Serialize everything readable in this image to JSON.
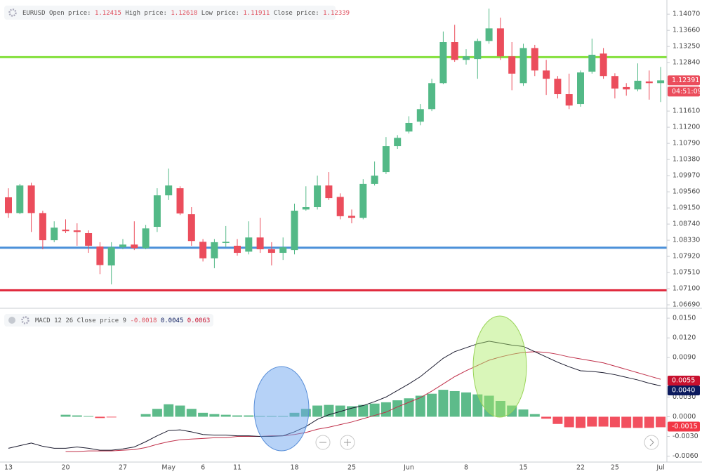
{
  "chart_data": [
    {
      "type": "candlestick",
      "symbol": "EURUSD",
      "legend": [
        {
          "label": "Open price:",
          "value": 1.12415
        },
        {
          "label": "High price:",
          "value": 1.12618
        },
        {
          "label": "Low price:",
          "value": 1.11911
        },
        {
          "label": "Close price:",
          "value": 1.12339
        }
      ],
      "categories": [
        "13",
        null,
        null,
        null,
        null,
        "20",
        null,
        null,
        null,
        null,
        "27",
        null,
        null,
        null,
        "May",
        null,
        null,
        "6",
        null,
        null,
        "11",
        null,
        null,
        null,
        null,
        "18",
        null,
        null,
        null,
        null,
        "25",
        null,
        null,
        null,
        null,
        "Jun",
        null,
        null,
        null,
        null,
        "8",
        null,
        null,
        null,
        null,
        "15",
        null,
        null,
        null,
        null,
        "22",
        null,
        null,
        "25",
        null,
        null,
        null,
        "Jul"
      ],
      "open": [
        1.0942,
        1.0902,
        1.0972,
        1.0902,
        1.0833,
        1.086,
        1.0858,
        1.0851,
        1.0817,
        1.0769,
        1.0815,
        1.0822,
        1.0813,
        1.0867,
        1.0947,
        1.0965,
        1.0899,
        1.0829,
        1.0787,
        1.0826,
        1.0819,
        1.0804,
        1.084,
        1.081,
        1.0801,
        1.0808,
        1.0911,
        1.0917,
        1.0972,
        1.0943,
        1.0895,
        1.089,
        1.0976,
        1.1006,
        1.1072,
        1.1109,
        1.1134,
        1.1166,
        1.1232,
        1.1336,
        1.1291,
        1.1293,
        1.1339,
        1.1371,
        1.13,
        1.1232,
        1.1321,
        1.1264,
        1.1243,
        1.1204,
        1.1179,
        1.1261,
        1.1307,
        1.125,
        1.1222,
        1.1216,
        1.1236,
        1.1232
      ],
      "high": [
        1.0965,
        1.0976,
        1.0979,
        1.0908,
        1.0881,
        1.0886,
        1.0876,
        1.0858,
        1.0828,
        1.0828,
        1.0836,
        1.0881,
        1.0872,
        1.0965,
        1.1015,
        1.097,
        1.0917,
        1.0836,
        1.0836,
        1.0869,
        1.0836,
        1.0881,
        1.089,
        1.0828,
        1.084,
        1.0926,
        1.097,
        1.0997,
        1.1006,
        1.0952,
        1.0911,
        1.0988,
        1.1033,
        1.1095,
        1.11,
        1.1148,
        1.1179,
        1.1243,
        1.1363,
        1.138,
        1.1318,
        1.1345,
        1.1421,
        1.1398,
        1.1336,
        1.1332,
        1.1329,
        1.1291,
        1.125,
        1.1256,
        1.1264,
        1.1345,
        1.1321,
        1.1257,
        1.1232,
        1.1282,
        1.1264,
        1.1273
      ],
      "low": [
        1.089,
        1.0899,
        1.0854,
        1.081,
        1.0828,
        1.0851,
        1.0819,
        1.0801,
        1.0747,
        1.0721,
        1.081,
        1.0808,
        1.081,
        1.0854,
        1.0935,
        1.0897,
        1.0819,
        1.0779,
        1.0762,
        1.0815,
        1.0794,
        1.0797,
        1.0801,
        1.0769,
        1.0783,
        1.0797,
        1.0908,
        1.0911,
        1.0935,
        1.0886,
        1.0876,
        1.0886,
        1.0972,
        1.1001,
        1.1065,
        1.1104,
        1.1125,
        1.1161,
        1.1229,
        1.1286,
        1.1279,
        1.1243,
        1.1332,
        1.1291,
        1.1214,
        1.1225,
        1.125,
        1.1202,
        1.1193,
        1.1166,
        1.1172,
        1.1256,
        1.1243,
        1.1193,
        1.12,
        1.1211,
        1.119,
        1.1184
      ],
      "close": [
        1.0902,
        1.0972,
        1.0902,
        1.0833,
        1.0865,
        1.0856,
        1.0854,
        1.0819,
        1.077,
        1.0815,
        1.0822,
        1.0813,
        1.0863,
        1.0947,
        1.0972,
        1.0901,
        1.0831,
        1.0787,
        1.0828,
        1.0829,
        1.0801,
        1.084,
        1.081,
        1.0801,
        1.0815,
        1.0908,
        1.0917,
        1.0972,
        1.094,
        1.0894,
        1.089,
        1.0976,
        1.0997,
        1.1072,
        1.1093,
        1.1131,
        1.1166,
        1.1232,
        1.1336,
        1.1291,
        1.13,
        1.1339,
        1.1371,
        1.13,
        1.1256,
        1.1321,
        1.1264,
        1.1243,
        1.1204,
        1.1175,
        1.1259,
        1.1304,
        1.125,
        1.1218,
        1.1216,
        1.1238,
        1.1232,
        1.1239
      ],
      "up_color": "#53b987",
      "down_color": "#eb4d5c",
      "hlines": [
        {
          "value": 1.1298,
          "color": "#84e03c"
        },
        {
          "value": 1.0814,
          "color": "#4a90d9"
        },
        {
          "value": 1.0706,
          "color": "#e0263a"
        }
      ],
      "last_price": 1.12391,
      "countdown": "04:51:09",
      "ylim": [
        1.0662,
        1.1443
      ],
      "yticks": [
        {
          "value": 1.1407,
          "label": "1.14070"
        },
        {
          "value": 1.1366,
          "label": "1.13660"
        },
        {
          "value": 1.1325,
          "label": "1.13250"
        },
        {
          "value": 1.1284,
          "label": "1.12840"
        },
        {
          "value": 1.1161,
          "label": "1.11610"
        },
        {
          "value": 1.112,
          "label": "1.11200"
        },
        {
          "value": 1.1079,
          "label": "1.10790"
        },
        {
          "value": 1.1038,
          "label": "1.10380"
        },
        {
          "value": 1.0997,
          "label": "1.09970"
        },
        {
          "value": 1.0956,
          "label": "1.09560"
        },
        {
          "value": 1.0915,
          "label": "1.09150"
        },
        {
          "value": 1.0874,
          "label": "1.08740"
        },
        {
          "value": 1.0833,
          "label": "1.08330"
        },
        {
          "value": 1.0792,
          "label": "1.07920"
        },
        {
          "value": 1.0751,
          "label": "1.07510"
        },
        {
          "value": 1.071,
          "label": "1.07100"
        },
        {
          "value": 1.0669,
          "label": "1.06690"
        }
      ]
    },
    {
      "type": "macd",
      "title": "MACD 12 26 Close price 9",
      "legend_values": [
        -0.0018,
        0.0045,
        0.0063
      ],
      "histogram": [
        null,
        null,
        null,
        null,
        null,
        0.0003,
        0.0002,
        0.0001,
        -0.0002,
        -0.0001,
        0,
        0,
        0.0004,
        0.0012,
        0.0019,
        0.0017,
        0.0012,
        0.0006,
        0.0004,
        0.0003,
        0.0002,
        0.0002,
        0.0001,
        0.0001,
        0.0001,
        0.0006,
        0.0012,
        0.0017,
        0.0018,
        0.0017,
        0.0016,
        0.0018,
        0.002,
        0.0022,
        0.0025,
        0.0028,
        0.0032,
        0.0035,
        0.0041,
        0.0039,
        0.0037,
        0.0034,
        0.0032,
        0.0024,
        0.0017,
        0.0011,
        0.0004,
        -0.0003,
        -0.0011,
        -0.0016,
        -0.0017,
        -0.0015,
        -0.0015,
        -0.0016,
        -0.0017,
        -0.0017,
        -0.0017,
        -0.0016
      ],
      "macd": [
        -0.0048,
        -0.0044,
        -0.004,
        -0.0045,
        -0.0048,
        -0.0048,
        -0.0046,
        -0.0048,
        -0.0051,
        -0.0051,
        -0.0049,
        -0.0046,
        -0.0038,
        -0.0029,
        -0.0021,
        -0.002,
        -0.0023,
        -0.0027,
        -0.0028,
        -0.0028,
        -0.0029,
        -0.0029,
        -0.003,
        -0.003,
        -0.0029,
        -0.0023,
        -0.0015,
        -0.0004,
        0.0003,
        0.0008,
        0.0013,
        0.0017,
        0.0023,
        0.003,
        0.004,
        0.005,
        0.0061,
        0.0075,
        0.0089,
        0.0099,
        0.0105,
        0.0111,
        0.0115,
        0.0112,
        0.0109,
        0.0107,
        0.0099,
        0.0091,
        0.0083,
        0.0076,
        0.007,
        0.0069,
        0.0067,
        0.0064,
        0.006,
        0.0056,
        0.0051,
        0.0047
      ],
      "signal": [
        null,
        null,
        null,
        null,
        null,
        -0.0053,
        -0.0053,
        -0.0052,
        -0.0052,
        -0.0052,
        -0.0051,
        -0.005,
        -0.0047,
        -0.0042,
        -0.0038,
        -0.0035,
        -0.0034,
        -0.0033,
        -0.0032,
        -0.0032,
        -0.003,
        -0.003,
        -0.003,
        -0.0029,
        -0.0029,
        -0.0027,
        -0.0024,
        -0.0019,
        -0.0016,
        -0.0012,
        -0.0008,
        -0.0003,
        0.0002,
        0.0007,
        0.0015,
        0.0022,
        0.0029,
        0.0039,
        0.005,
        0.0061,
        0.007,
        0.0078,
        0.0086,
        0.0091,
        0.0095,
        0.0098,
        0.0099,
        0.0098,
        0.0095,
        0.0091,
        0.0088,
        0.0085,
        0.0082,
        0.0077,
        0.0072,
        0.0067,
        0.0062,
        0.0057
      ],
      "macd_color": "#1a1a2e",
      "signal_color": "#c0304a",
      "hist_up_color": "#5dbb8a",
      "hist_down_color": "#f2505f",
      "tags": [
        {
          "value": 0.0055,
          "color": "#c8102e"
        },
        {
          "value": {
            "value": 0.004,
            "label": "0.0040"
          },
          "color": "#0b1a5e"
        },
        {
          "value": -0.0015,
          "color": "#f23645"
        }
      ],
      "ylim": [
        -0.0069,
        0.0164
      ],
      "yticks": [
        {
          "value": 0.015,
          "label": "0.0150"
        },
        {
          "value": 0.012,
          "label": "0.0120"
        },
        {
          "value": 0.009,
          "label": "0.0090"
        },
        {
          "value": 0.003,
          "label": "0.0030"
        },
        {
          "value": 0,
          "label": "0.0000"
        },
        {
          "value": -0.003,
          "label": "-0.0030"
        },
        {
          "value": -0.006,
          "label": "-0.0060"
        }
      ]
    }
  ]
}
